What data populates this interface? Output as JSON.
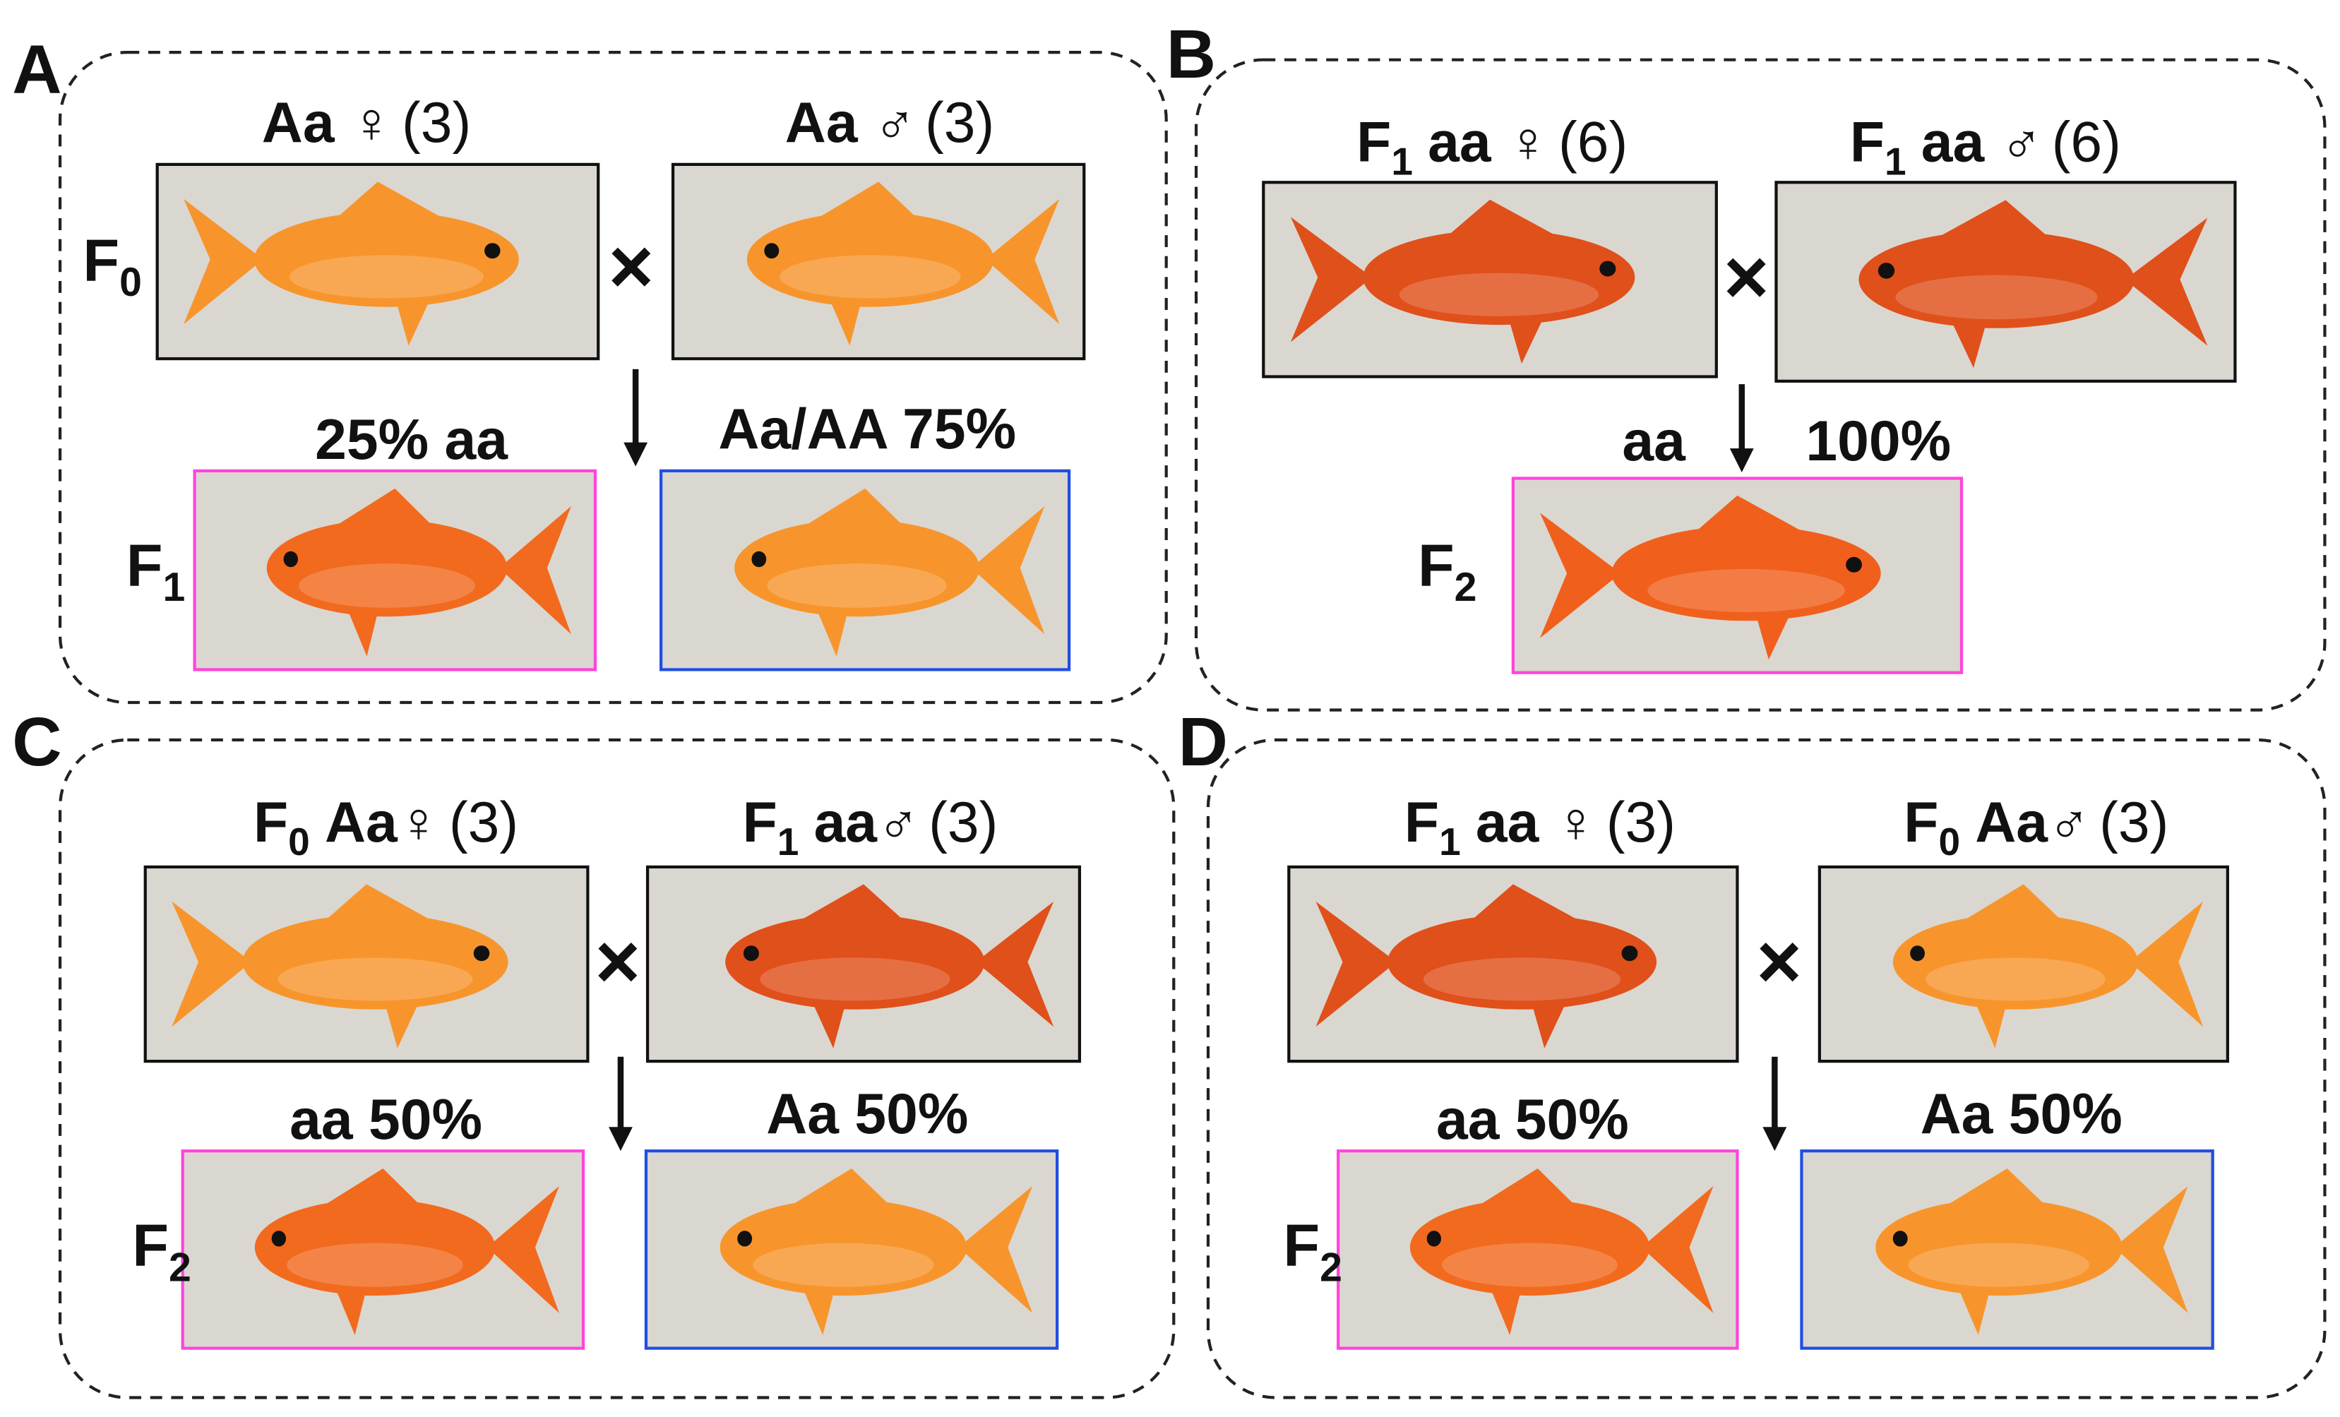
{
  "panels": [
    {
      "letter": "A",
      "parent_generation": {
        "base": "F",
        "sub": "0"
      },
      "parents": [
        {
          "text": "Aa ♀",
          "count": "(3)",
          "fish_color": "#f7952c"
        },
        {
          "text": "Aa ♂",
          "count": "(3)",
          "fish_color": "#f7952c"
        }
      ],
      "cross": "×",
      "offspring_generation": {
        "base": "F",
        "sub": "1"
      },
      "offspring": [
        {
          "text": "25% aa",
          "frame_color": "#ff44dd",
          "fish_color": "#f26a1e"
        },
        {
          "text": "Aa/AA 75%",
          "frame_color": "#1f4fe0",
          "fish_color": "#f7952c"
        }
      ]
    },
    {
      "letter": "B",
      "parent_generation": null,
      "parents": [
        {
          "gen": "F",
          "gen_sub": "1",
          "text": "aa ♀",
          "count": "(6)",
          "fish_color": "#e0501a"
        },
        {
          "gen": "F",
          "gen_sub": "1",
          "text": "aa ♂",
          "count": "(6)",
          "fish_color": "#e0501a"
        }
      ],
      "cross": "×",
      "offspring_generation": {
        "base": "F",
        "sub": "2"
      },
      "offspring": [
        {
          "text": "aa 100%",
          "frame_color": "#ff44dd",
          "fish_color": "#f0601c"
        }
      ]
    },
    {
      "letter": "C",
      "parent_generation": null,
      "parents": [
        {
          "gen": "F",
          "gen_sub": "0",
          "text": "Aa♀",
          "count": "(3)",
          "fish_color": "#f7952c"
        },
        {
          "gen": "F",
          "gen_sub": "1",
          "text": "aa♂",
          "count": "(3)",
          "fish_color": "#e0501a"
        }
      ],
      "cross": "×",
      "offspring_generation": {
        "base": "F",
        "sub": "2"
      },
      "offspring": [
        {
          "text": "aa 50%",
          "frame_color": "#ff44dd",
          "fish_color": "#f26a1e"
        },
        {
          "text": "Aa 50%",
          "frame_color": "#1f4fe0",
          "fish_color": "#f7952c"
        }
      ]
    },
    {
      "letter": "D",
      "parent_generation": null,
      "parents": [
        {
          "gen": "F",
          "gen_sub": "1",
          "text": "aa ♀",
          "count": "(3)",
          "fish_color": "#e0501a"
        },
        {
          "gen": "F",
          "gen_sub": "0",
          "text": "Aa♂",
          "count": "(3)",
          "fish_color": "#f7952c"
        }
      ],
      "cross": "×",
      "offspring_generation": {
        "base": "F",
        "sub": "2"
      },
      "offspring": [
        {
          "text": "aa 50%",
          "frame_color": "#ff44dd",
          "fish_color": "#f26a1e"
        },
        {
          "text": "Aa 50%",
          "frame_color": "#1f4fe0",
          "fish_color": "#f7952c"
        }
      ]
    }
  ]
}
